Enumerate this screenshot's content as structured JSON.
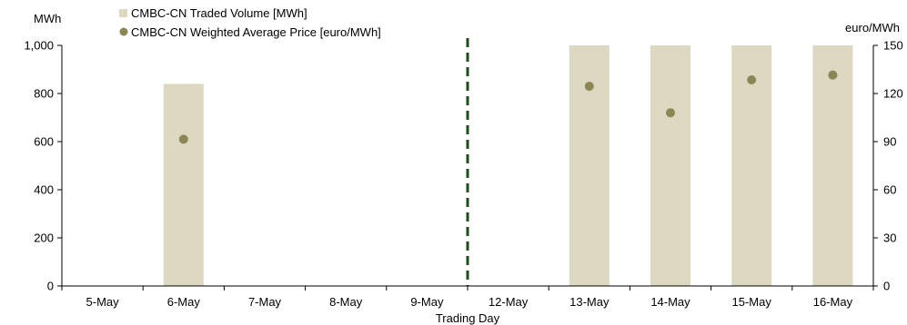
{
  "chart_data": {
    "type": "bar",
    "categories": [
      "5-May",
      "6-May",
      "7-May",
      "8-May",
      "9-May",
      "12-May",
      "13-May",
      "14-May",
      "15-May",
      "16-May"
    ],
    "series": [
      {
        "name": "CMBC-CN Traded Volume [MWh]",
        "type": "bar",
        "axis": "left",
        "color": "#ddd8c1",
        "values": [
          null,
          840,
          null,
          null,
          null,
          null,
          1000,
          1000,
          1000,
          1000
        ]
      },
      {
        "name": "CMBC-CN Weighted Average Price [euro/MWh]",
        "type": "scatter",
        "axis": "right",
        "color": "#8c8655",
        "values": [
          null,
          91.5,
          null,
          null,
          null,
          null,
          124.5,
          108,
          128.5,
          131.5
        ]
      }
    ],
    "xlabel": "Trading Day",
    "ylabel": "MWh",
    "y2label": "euro/MWh",
    "ylim": [
      0,
      1000
    ],
    "y2lim": [
      0,
      150
    ],
    "yticks": [
      "0",
      "200",
      "400",
      "600",
      "800",
      "1,000"
    ],
    "y2ticks": [
      "0",
      "30",
      "60",
      "90",
      "120",
      "150"
    ],
    "divider_between": [
      "9-May",
      "12-May"
    ],
    "divider_color": "#1f4d1f",
    "legend_position": "top-left",
    "grid": false
  }
}
